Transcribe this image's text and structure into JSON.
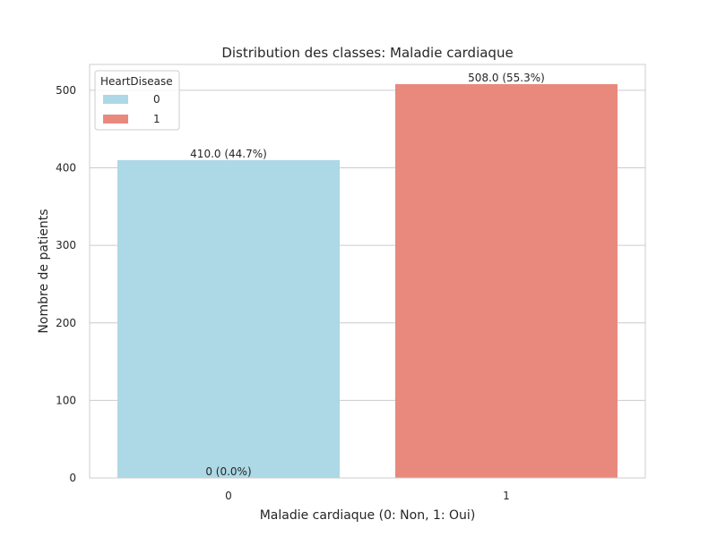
{
  "chart_data": {
    "type": "bar",
    "title": "Distribution des classes: Maladie cardiaque",
    "xlabel": "Maladie cardiaque (0: Non, 1: Oui)",
    "ylabel": "Nombre de patients",
    "categories": [
      "0",
      "1"
    ],
    "series": [
      {
        "name": "0",
        "color": "#add8e6",
        "values": [
          410,
          0
        ]
      },
      {
        "name": "1",
        "color": "#e9897e",
        "values": [
          0,
          508
        ]
      }
    ],
    "yticks": [
      "0",
      "100",
      "200",
      "300",
      "400",
      "500"
    ],
    "ylim": [
      0,
      533.4
    ],
    "grid": true,
    "data_labels": [
      {
        "text": "410.0 (44.7%)",
        "category": "0",
        "value": 410
      },
      {
        "text": "508.0 (55.3%)",
        "category": "1",
        "value": 508
      },
      {
        "text": "0 (0.0%)",
        "category": "0",
        "value": 0
      }
    ],
    "legend": {
      "title": "HeartDisease",
      "placement": "top-left",
      "entries": [
        "0",
        "1"
      ]
    }
  }
}
